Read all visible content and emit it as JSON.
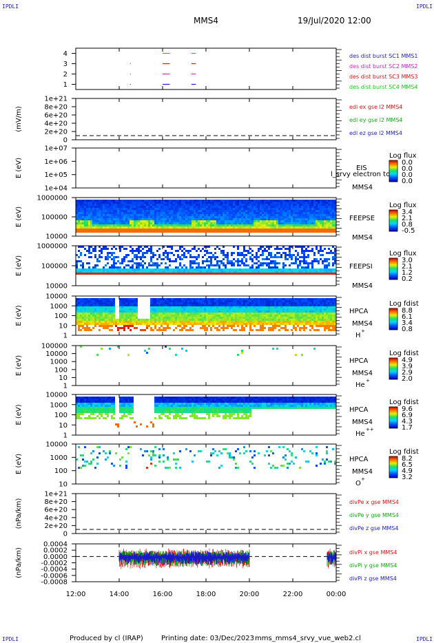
{
  "corner_label": "IPDLI",
  "header": {
    "title": "MMS4",
    "datetime": "19/Jul/2020 12:00"
  },
  "footer": {
    "produced_by": "Produced by cl (IRAP)",
    "printing_date": "Printing date: 03/Dec/2023",
    "filename": "mms_mms4_srvy_vue_web2.cl"
  },
  "chart_data": [
    {
      "id": "burst",
      "type": "scatter",
      "ylim": [
        0.5,
        4.5
      ],
      "yticks": [
        "4",
        "3",
        "2",
        "1"
      ],
      "series": [
        {
          "name": "des dist burst SC1 MMS1",
          "color": "#1a1acc",
          "y": 1,
          "segments": [
            [
              "14:30",
              "14:32"
            ],
            [
              "16:00",
              "16:20"
            ],
            [
              "17:20",
              "17:32"
            ]
          ]
        },
        {
          "name": "des dist burst SC2 MMS2",
          "color": "#cc22cc",
          "y": 2,
          "segments": [
            [
              "14:30",
              "14:32"
            ],
            [
              "16:00",
              "16:20"
            ],
            [
              "17:20",
              "17:32"
            ]
          ]
        },
        {
          "name": "des dist burst SC3 MMS3",
          "color": "#dd1111",
          "y": 3,
          "segments": [
            [
              "14:30",
              "14:32"
            ],
            [
              "16:00",
              "16:20"
            ],
            [
              "17:20",
              "17:32"
            ]
          ]
        },
        {
          "name": "des dist burst SC4 MMS4",
          "color": "#11cc11",
          "y": 4,
          "segments": [
            [
              "16:00",
              "16:20"
            ],
            [
              "17:20",
              "17:32"
            ]
          ]
        }
      ]
    },
    {
      "id": "edi",
      "type": "line",
      "ylabel": "(mV/m)",
      "yticks": [
        "1e+21",
        "8e+20",
        "6e+20",
        "4e+20",
        "2e+20",
        "0"
      ],
      "series": [
        {
          "name": "edi ex gse l2 MMS4",
          "color": "#dd1111"
        },
        {
          "name": "edi ey gse l2 MMS4",
          "color": "#11aa11"
        },
        {
          "name": "edi ez gse l2 MMS4",
          "color": "#1a1acc"
        }
      ]
    },
    {
      "id": "eis",
      "type": "heatmap",
      "ylabel": "E (eV)",
      "yticks": [
        "1e+07",
        "1e+06",
        "1e+05",
        "1e+04"
      ],
      "instrument": "EIS",
      "spacecraft": "MMS4",
      "overlay_text": "l_srvy electron to",
      "colorbar": {
        "title": "Log flux",
        "ticks": [
          "0.0",
          "0.0",
          "0.0",
          "0.0"
        ]
      }
    },
    {
      "id": "feepse",
      "type": "heatmap",
      "ylabel": "E (eV)",
      "yticks": [
        "1000000",
        "100000",
        "10000"
      ],
      "instrument": "FEEPSE",
      "spacecraft": "MMS4",
      "colorbar": {
        "title": "Log flux",
        "ticks": [
          "3.4",
          "2.1",
          "0.8",
          "-0.5"
        ]
      }
    },
    {
      "id": "feepsi",
      "type": "heatmap",
      "ylabel": "E (eV)",
      "yticks": [
        "1000000",
        "100000",
        "10000"
      ],
      "instrument": "FEEPSI",
      "spacecraft": "MMS4",
      "colorbar": {
        "title": "Log flux",
        "ticks": [
          "3.0",
          "2.1",
          "1.2",
          "0.2"
        ]
      }
    },
    {
      "id": "hpca_h",
      "type": "heatmap",
      "ylabel": "E (eV)",
      "yticks": [
        "10000",
        "1000",
        "100",
        "10",
        "1"
      ],
      "instrument": "HPCA",
      "spacecraft": "MMS4",
      "species": "H",
      "charge": "+",
      "colorbar": {
        "title": "Log fdist",
        "ticks": [
          "8.8",
          "6.1",
          "3.4",
          "0.8"
        ]
      }
    },
    {
      "id": "hpca_he",
      "type": "heatmap",
      "ylabel": "E (eV)",
      "yticks": [
        "100000",
        "10000",
        "1000",
        "100",
        "10",
        "1"
      ],
      "instrument": "HPCA",
      "spacecraft": "MMS4",
      "species": "He",
      "charge": "+",
      "colorbar": {
        "title": "Log fdist",
        "ticks": [
          "4.9",
          "3.9",
          "2.9",
          "2.0"
        ]
      }
    },
    {
      "id": "hpca_he2",
      "type": "heatmap",
      "ylabel": "E (eV)",
      "yticks": [
        "10000",
        "1000",
        "100",
        "10",
        "1"
      ],
      "instrument": "HPCA",
      "spacecraft": "MMS4",
      "species": "He",
      "charge": "++",
      "colorbar": {
        "title": "Log fdist",
        "ticks": [
          "9.6",
          "6.9",
          "4.3",
          "1.7"
        ]
      }
    },
    {
      "id": "hpca_o",
      "type": "heatmap",
      "ylabel": "E (eV)",
      "yticks": [
        "10000",
        "1000",
        "100",
        "10"
      ],
      "instrument": "HPCA",
      "spacecraft": "MMS4",
      "species": "O",
      "charge": "+",
      "colorbar": {
        "title": "Log fdist",
        "ticks": [
          "8.2",
          "6.5",
          "4.9",
          "3.2"
        ]
      }
    },
    {
      "id": "divpe",
      "type": "line",
      "ylabel": "(nPa/km)",
      "yticks": [
        "1e+21",
        "8e+20",
        "6e+20",
        "4e+20",
        "2e+20",
        "0"
      ],
      "series": [
        {
          "name": "divPe x gse MMS4",
          "color": "#dd1111"
        },
        {
          "name": "divPe y gse MMS4",
          "color": "#11aa11"
        },
        {
          "name": "divPe z gse MMS4",
          "color": "#1a1acc"
        }
      ]
    },
    {
      "id": "divpi",
      "type": "line",
      "ylabel": "(nPa/km)",
      "yticks": [
        "0.0004",
        "0.0002",
        "0.0000",
        "-0.0002",
        "-0.0004",
        "-0.0006",
        "-0.0008"
      ],
      "series": [
        {
          "name": "divPi x gse MMS4",
          "color": "#dd1111"
        },
        {
          "name": "divPi y gse MMS4",
          "color": "#11aa11"
        },
        {
          "name": "divPi z gse MMS4",
          "color": "#1a1acc"
        }
      ],
      "data_intervals": [
        [
          "14:00",
          "20:00"
        ],
        [
          "23:35",
          "24:00"
        ]
      ]
    }
  ],
  "time_axis": {
    "ticks": [
      "12:00",
      "14:00",
      "16:00",
      "18:00",
      "20:00",
      "22:00",
      "00:00"
    ],
    "range_hours": [
      12,
      24
    ]
  }
}
